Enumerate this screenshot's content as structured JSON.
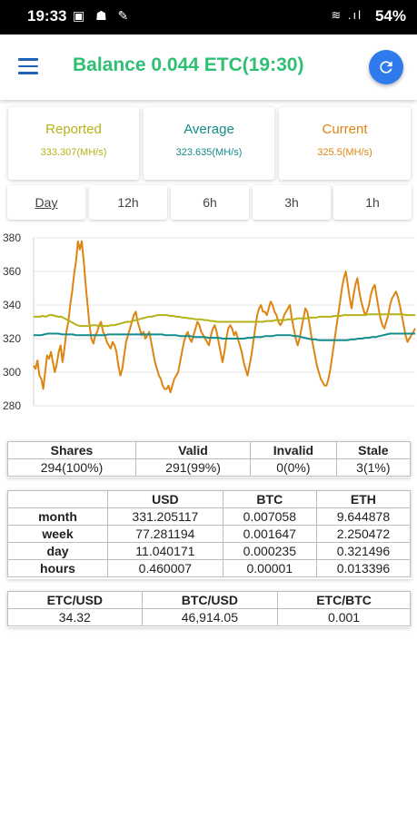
{
  "status_bar": {
    "time": "19:33",
    "left_icons": "▣ ☗ ✎",
    "right_icons": "≋ .ıl",
    "battery": "54%"
  },
  "header": {
    "title": "Balance 0.044 ETC(19:30)",
    "title_color": "#2fbf72",
    "menu_icon": "hamburger-menu-icon",
    "refresh_icon": "refresh-icon",
    "accent": "#2f7bed"
  },
  "cards": [
    {
      "label": "Reported",
      "value": "333.307(MH/s)",
      "color": "#b5b218"
    },
    {
      "label": "Average",
      "value": "323.635(MH/s)",
      "color": "#138c8c"
    },
    {
      "label": "Current",
      "value": "325.5(MH/s)",
      "color": "#de8410"
    }
  ],
  "ranges": [
    "Day",
    "12h",
    "6h",
    "3h",
    "1h"
  ],
  "chart_data": {
    "type": "line",
    "y_ticks": [
      "380",
      "360",
      "340",
      "320",
      "300",
      "280"
    ],
    "ylim": [
      280,
      380
    ],
    "grid": true,
    "series": [
      {
        "color": "#de8410",
        "values": [
          304,
          302,
          307,
          298,
          296,
          290,
          300,
          310,
          308,
          312,
          306,
          300,
          305,
          312,
          316,
          306,
          314,
          324,
          330,
          340,
          348,
          358,
          366,
          378,
          373,
          378,
          366,
          352,
          340,
          328,
          320,
          317,
          322,
          324,
          328,
          330,
          324,
          322,
          318,
          316,
          314,
          318,
          316,
          312,
          304,
          298,
          302,
          310,
          318,
          322,
          326,
          330,
          334,
          336,
          330,
          326,
          322,
          324,
          320,
          322,
          324,
          318,
          312,
          306,
          302,
          298,
          296,
          292,
          290,
          290,
          292,
          288,
          292,
          296,
          298,
          300,
          306,
          312,
          318,
          322,
          324,
          320,
          318,
          322,
          326,
          330,
          328,
          324,
          322,
          320,
          318,
          316,
          322,
          326,
          328,
          324,
          318,
          312,
          306,
          312,
          320,
          326,
          328,
          326,
          322,
          324,
          320,
          316,
          312,
          306,
          302,
          298,
          304,
          310,
          318,
          326,
          334,
          338,
          340,
          336,
          336,
          334,
          338,
          342,
          340,
          336,
          334,
          330,
          328,
          330,
          334,
          336,
          338,
          340,
          332,
          326,
          320,
          316,
          320,
          326,
          332,
          338,
          336,
          330,
          322,
          316,
          310,
          304,
          300,
          296,
          294,
          292,
          292,
          296,
          302,
          310,
          318,
          326,
          334,
          342,
          350,
          356,
          360,
          352,
          344,
          338,
          346,
          352,
          356,
          348,
          342,
          338,
          334,
          336,
          340,
          346,
          350,
          352,
          345,
          338,
          332,
          328,
          326,
          330,
          334,
          340,
          344,
          346,
          348,
          345,
          340,
          334,
          328,
          322,
          318,
          320,
          322,
          324,
          326
        ]
      },
      {
        "color": "#b5b218",
        "values": [
          333,
          333,
          333,
          333.5,
          333,
          334,
          334,
          333.5,
          333,
          333,
          332,
          331,
          330,
          329,
          328,
          327.5,
          327.5,
          327.5,
          327.5,
          328,
          328,
          327.5,
          327.5,
          327.5,
          327.5,
          328,
          328,
          328.5,
          329,
          329.5,
          330,
          330,
          330.5,
          331,
          331.5,
          332,
          332.5,
          333,
          333,
          333.5,
          334,
          334,
          334,
          334,
          333.5,
          333.5,
          333,
          333,
          332.5,
          332.5,
          332,
          332,
          331.5,
          331.5,
          331.5,
          331,
          331,
          330.5,
          330.5,
          330,
          330,
          330,
          330,
          330,
          330,
          330,
          330,
          330,
          330,
          330,
          330,
          330,
          330,
          330,
          330,
          330.5,
          330.5,
          330.5,
          331,
          331,
          331,
          331,
          331.5,
          331.5,
          331.5,
          332,
          332,
          332,
          332,
          332.5,
          332.5,
          332.5,
          333,
          333,
          333,
          333,
          333,
          333.5,
          333.5,
          333.5,
          334,
          334,
          334,
          334,
          334,
          334,
          334,
          334,
          334.5,
          334.5,
          334.5,
          334.5,
          334.5,
          334.5,
          334.5,
          334.5,
          334.5,
          334.5,
          334.5,
          334.5,
          334,
          334,
          334,
          334
        ]
      },
      {
        "color": "#138c8c",
        "values": [
          322,
          322,
          322,
          322.5,
          323,
          323,
          323,
          323,
          322.5,
          322.5,
          322.5,
          322.5,
          322,
          322,
          322,
          322,
          322,
          322,
          322,
          322,
          322,
          322.5,
          322.5,
          322.5,
          322.5,
          322.5,
          322.5,
          322.5,
          322.5,
          322.5,
          322.5,
          322.5,
          322.5,
          322.5,
          322.5,
          322.5,
          322.5,
          322,
          322,
          322,
          322,
          321.5,
          321.5,
          321.5,
          321.5,
          321,
          321,
          321,
          321,
          320.5,
          320.5,
          320.5,
          320.5,
          320,
          320,
          320,
          320,
          320,
          320,
          320,
          320.5,
          320.5,
          321,
          321,
          321,
          321.5,
          321.5,
          321.5,
          322,
          322,
          322,
          322,
          322,
          321.5,
          321.5,
          321,
          320.5,
          320,
          319.5,
          319.5,
          319,
          319,
          319,
          319,
          319,
          319,
          319,
          319,
          319,
          319.5,
          319.5,
          320,
          320,
          320.5,
          320.5,
          321,
          321,
          321.5,
          322,
          322.5,
          323,
          323,
          323,
          323,
          323,
          323,
          323,
          323
        ]
      }
    ]
  },
  "shares_table": {
    "headers": [
      "Shares",
      "Valid",
      "Invalid",
      "Stale"
    ],
    "values": [
      "294(100%)",
      "291(99%)",
      "0(0%)",
      "3(1%)"
    ]
  },
  "earnings_table": {
    "headers": [
      "",
      "USD",
      "BTC",
      "ETH"
    ],
    "rows": [
      [
        "month",
        "331.205117",
        "0.007058",
        "9.644878"
      ],
      [
        "week",
        "77.281194",
        "0.001647",
        "2.250472"
      ],
      [
        "day",
        "11.040171",
        "0.000235",
        "0.321496"
      ],
      [
        "hours",
        "0.460007",
        "0.00001",
        "0.013396"
      ]
    ]
  },
  "rates_table": {
    "headers": [
      "ETC/USD",
      "BTC/USD",
      "ETC/BTC"
    ],
    "values": [
      "34.32",
      "46,914.05",
      "0.001"
    ]
  }
}
